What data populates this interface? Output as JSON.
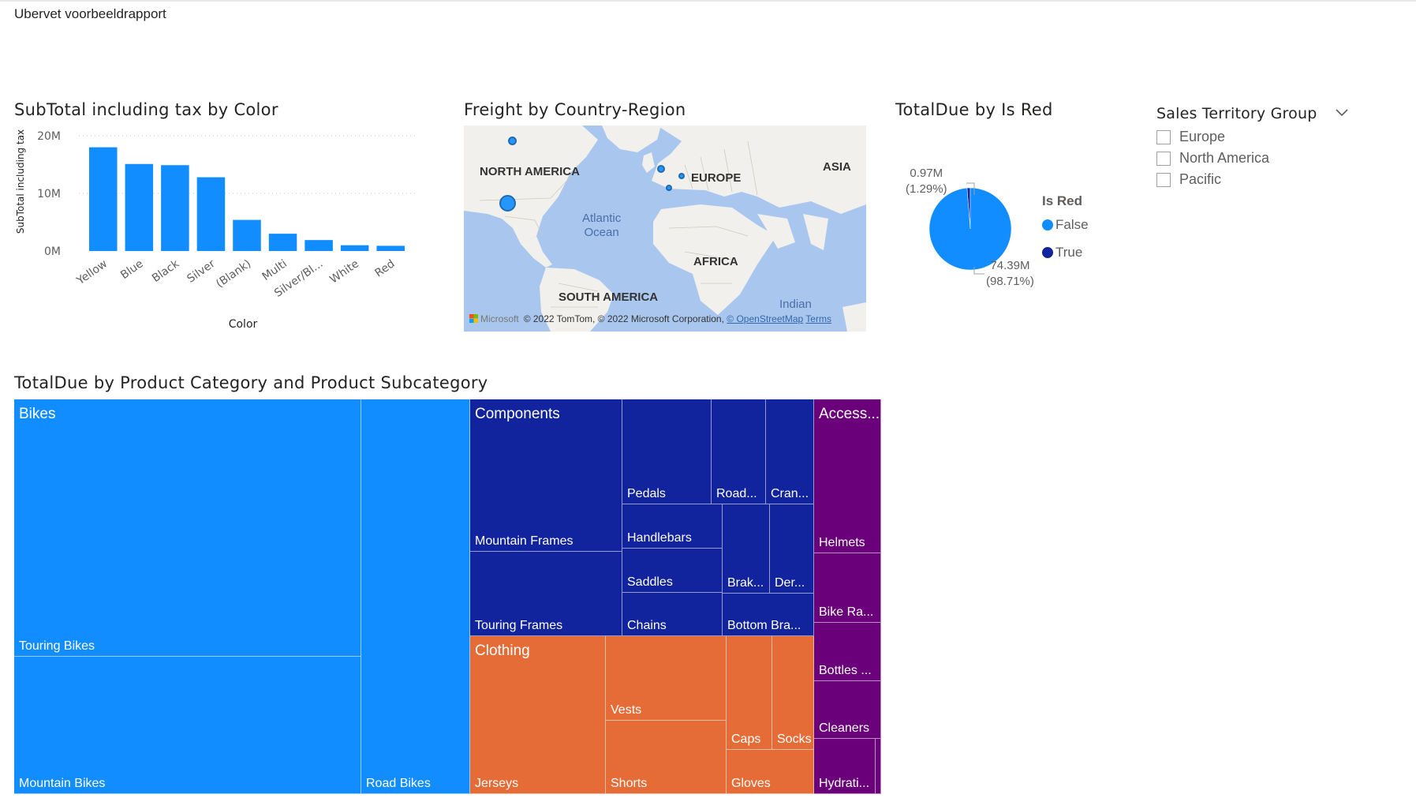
{
  "page": {
    "title": "Ubervet voorbeeldrapport"
  },
  "colors": {
    "primary": "#118dff",
    "dark_blue": "#12239e",
    "orange": "#e66c37",
    "purple": "#6b007b"
  },
  "bar_chart": {
    "title": "SubTotal including tax by Color",
    "xlabel": "Color",
    "ylabel": "SubTotal including tax",
    "y_ticks": [
      "20M",
      "10M",
      "0M"
    ]
  },
  "map": {
    "title": "Freight by Country-Region",
    "labels": {
      "north_america": "NORTH AMERICA",
      "europe": "EUROPE",
      "asia": "ASIA",
      "africa": "AFRICA",
      "south_america": "SOUTH AMERICA",
      "atlantic_l1": "Atlantic",
      "atlantic_l2": "Ocean",
      "indian": "Indian"
    },
    "credit": {
      "brand": "Microsoft",
      "text": "© 2022 TomTom, © 2022 Microsoft Corporation,",
      "osm": "© OpenStreetMap",
      "terms": "Terms"
    }
  },
  "pie": {
    "title": "TotalDue by Is Red",
    "legend_title": "Is Red",
    "legend": [
      {
        "label": "False",
        "color": "#118dff"
      },
      {
        "label": "True",
        "color": "#12239e"
      }
    ],
    "label_true_value": "0.97M",
    "label_true_pct": "(1.29%)",
    "label_false_value": "74.39M",
    "label_false_pct": "(98.71%)"
  },
  "slicer": {
    "title": "Sales Territory Group",
    "items": [
      "Europe",
      "North America",
      "Pacific"
    ]
  },
  "treemap": {
    "title": "TotalDue by Product Category and Product Subcategory",
    "categories": {
      "bikes": "Bikes",
      "components": "Components",
      "clothing": "Clothing",
      "accessories": "Access..."
    },
    "subcategories": {
      "touring_bikes": "Touring Bikes",
      "mountain_bikes": "Mountain Bikes",
      "road_bikes": "Road Bikes",
      "mountain_frames": "Mountain Frames",
      "touring_frames": "Touring Frames",
      "pedals": "Pedals",
      "road": "Road...",
      "cran": "Cran...",
      "handlebars": "Handlebars",
      "saddles": "Saddles",
      "chains": "Chains",
      "brak": "Brak...",
      "der": "Der...",
      "bottom_bra": "Bottom Bra...",
      "vests": "Vests",
      "shorts": "Shorts",
      "jerseys": "Jerseys",
      "caps": "Caps",
      "socks": "Socks",
      "gloves": "Gloves",
      "helmets": "Helmets",
      "bike_ra": "Bike Ra...",
      "bottles": "Bottles ...",
      "cleaners": "Cleaners",
      "hydrati": "Hydrati..."
    }
  },
  "chart_data": [
    {
      "type": "bar",
      "title": "SubTotal including tax by Color",
      "xlabel": "Color",
      "ylabel": "SubTotal including tax",
      "categories": [
        "Yellow",
        "Blue",
        "Black",
        "Silver",
        "(Blank)",
        "Multi",
        "Silver/Bl...",
        "White",
        "Red"
      ],
      "values": [
        18.0,
        15.1,
        14.9,
        12.8,
        5.4,
        3.0,
        1.9,
        1.0,
        0.9
      ],
      "value_unit": "M",
      "ylim": [
        0,
        20
      ],
      "y_ticks": [
        "0M",
        "10M",
        "20M"
      ],
      "grid": true,
      "color": "#118dff"
    },
    {
      "type": "pie",
      "title": "TotalDue by Is Red",
      "legend_title": "Is Red",
      "slices": [
        {
          "label": "False",
          "value": 74.39,
          "pct": 98.71,
          "color": "#118dff"
        },
        {
          "label": "True",
          "value": 0.97,
          "pct": 1.29,
          "color": "#12239e"
        }
      ],
      "legend_position": "right"
    }
  ]
}
